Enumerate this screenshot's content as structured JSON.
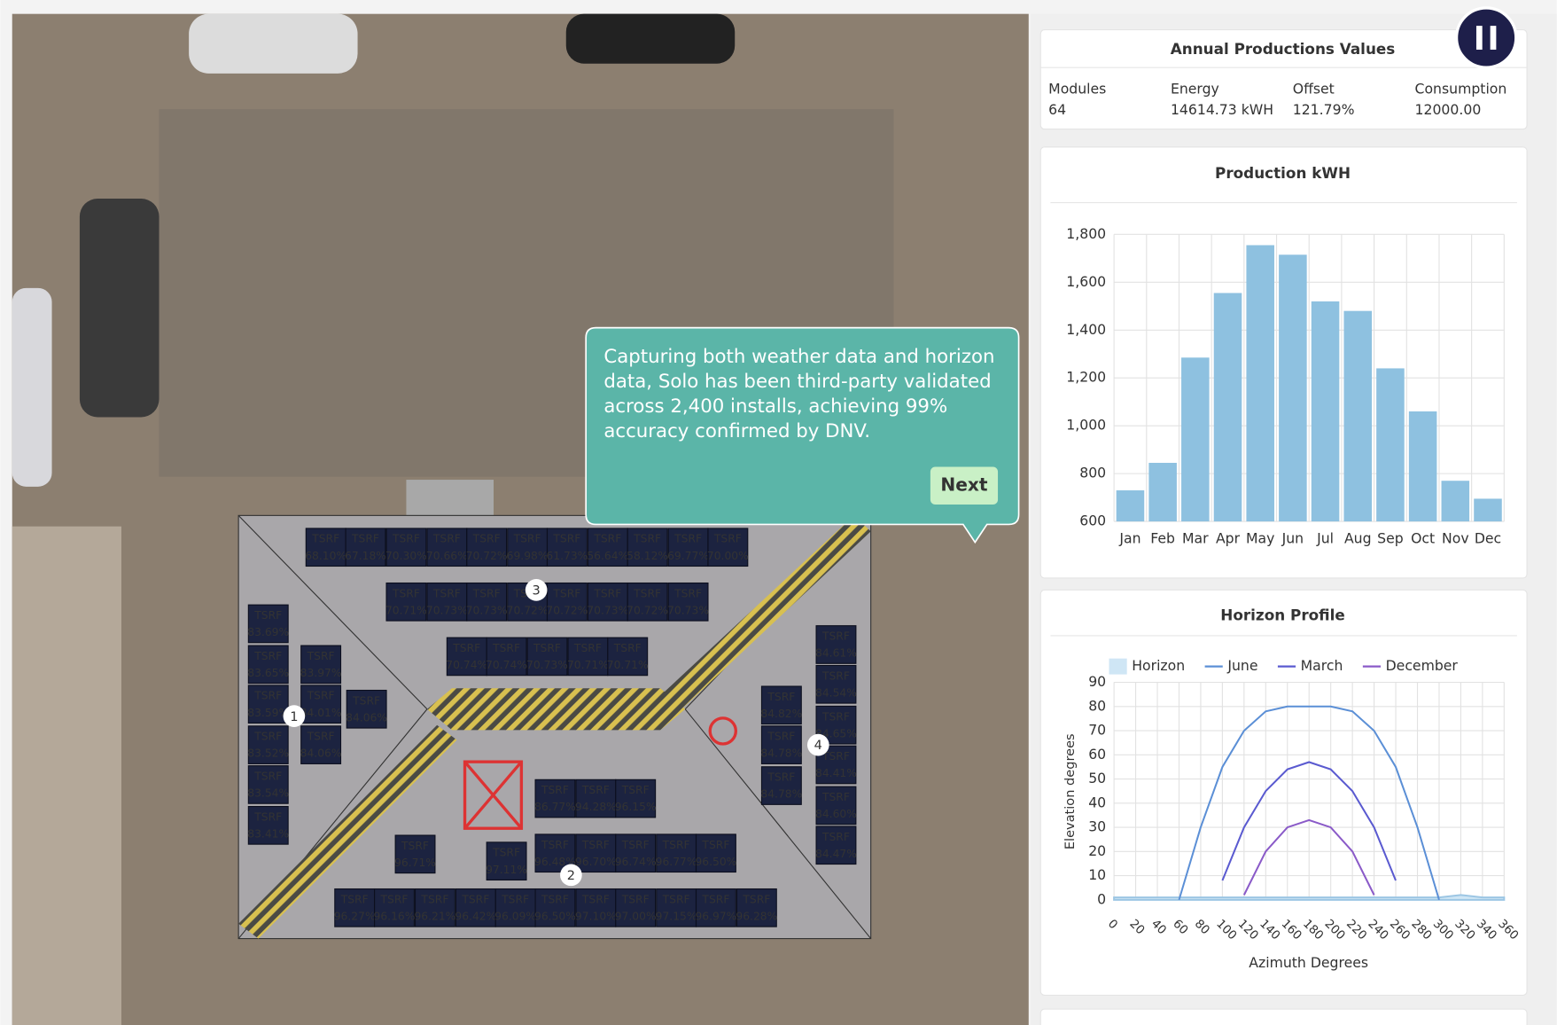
{
  "summary": {
    "title": "Annual Productions Values",
    "fields": [
      {
        "label": "Modules",
        "value": "64"
      },
      {
        "label": "Energy",
        "value": "14614.73 kWH"
      },
      {
        "label": "Offset",
        "value": "121.79%"
      },
      {
        "label": "Consumption",
        "value": "12000.00"
      }
    ]
  },
  "tooltip": {
    "text": "Capturing both weather data and horizon data, Solo has been third-party validated across 2,400 installs, achieving 99% accuracy confirmed by DNV.",
    "button": "Next"
  },
  "roof": {
    "markers": [
      "3",
      "1",
      "4",
      "2"
    ],
    "panels": [
      {
        "label": "TSRF",
        "value": "68.10%"
      },
      {
        "label": "TSRF",
        "value": "67.18%"
      },
      {
        "label": "TSRF",
        "value": "70.30%"
      },
      {
        "label": "TSRF",
        "value": "70.66%"
      },
      {
        "label": "TSRF",
        "value": "70.72%"
      },
      {
        "label": "TSRF",
        "value": "69.98%"
      },
      {
        "label": "TSRF",
        "value": "61.73%"
      },
      {
        "label": "TSRF",
        "value": "56.64%"
      },
      {
        "label": "TSRF",
        "value": "58.12%"
      },
      {
        "label": "TSRF",
        "value": "69.77%"
      },
      {
        "label": "TSRF",
        "value": "70.00%"
      },
      {
        "label": "TSRF",
        "value": "70.71%"
      },
      {
        "label": "TSRF",
        "value": "70.73%"
      },
      {
        "label": "TSRF",
        "value": "70.73%"
      },
      {
        "label": "TSRF",
        "value": "70.72%"
      },
      {
        "label": "TSRF",
        "value": "70.72%"
      },
      {
        "label": "TSRF",
        "value": "70.73%"
      },
      {
        "label": "TSRF",
        "value": "70.72%"
      },
      {
        "label": "TSRF",
        "value": "70.73%"
      },
      {
        "label": "TSRF",
        "value": "70.74%"
      },
      {
        "label": "TSRF",
        "value": "70.74%"
      },
      {
        "label": "TSRF",
        "value": "70.73%"
      },
      {
        "label": "TSRF",
        "value": "70.71%"
      },
      {
        "label": "TSRF",
        "value": "70.71%"
      },
      {
        "label": "TSRF",
        "value": "83.69%"
      },
      {
        "label": "TSRF",
        "value": "83.65%"
      },
      {
        "label": "TSRF",
        "value": "83.97%"
      },
      {
        "label": "TSRF",
        "value": "83.59%"
      },
      {
        "label": "TSRF",
        "value": "84.01%"
      },
      {
        "label": "TSRF",
        "value": "84.06%"
      },
      {
        "label": "TSRF",
        "value": "83.52%"
      },
      {
        "label": "TSRF",
        "value": "84.06%"
      },
      {
        "label": "TSRF",
        "value": "83.54%"
      },
      {
        "label": "TSRF",
        "value": "83.41%"
      },
      {
        "label": "TSRF",
        "value": "84.61%"
      },
      {
        "label": "TSRF",
        "value": "84.54%"
      },
      {
        "label": "TSRF",
        "value": "84.82%"
      },
      {
        "label": "TSRF",
        "value": "84.65%"
      },
      {
        "label": "TSRF",
        "value": "84.78%"
      },
      {
        "label": "TSRF",
        "value": "84.41%"
      },
      {
        "label": "TSRF",
        "value": "84.78%"
      },
      {
        "label": "TSRF",
        "value": "84.60%"
      },
      {
        "label": "TSRF",
        "value": "84.47%"
      },
      {
        "label": "TSRF",
        "value": "86.77%"
      },
      {
        "label": "TSRF",
        "value": "94.28%"
      },
      {
        "label": "TSRF",
        "value": "96.15%"
      },
      {
        "label": "TSRF",
        "value": "96.71%"
      },
      {
        "label": "TSRF",
        "value": "97.11%"
      },
      {
        "label": "TSRF",
        "value": "96.48%"
      },
      {
        "label": "TSRF",
        "value": "96.70%"
      },
      {
        "label": "TSRF",
        "value": "96.74%"
      },
      {
        "label": "TSRF",
        "value": "96.77%"
      },
      {
        "label": "TSRF",
        "value": "96.50%"
      },
      {
        "label": "TSRF",
        "value": "96.27%"
      },
      {
        "label": "TSRF",
        "value": "96.16%"
      },
      {
        "label": "TSRF",
        "value": "96.21%"
      },
      {
        "label": "TSRF",
        "value": "96.42%"
      },
      {
        "label": "TSRF",
        "value": "96.09%"
      },
      {
        "label": "TSRF",
        "value": "96.50%"
      },
      {
        "label": "TSRF",
        "value": "97.10%"
      },
      {
        "label": "TSRF",
        "value": "97.00%"
      },
      {
        "label": "TSRF",
        "value": "97.15%"
      },
      {
        "label": "TSRF",
        "value": "96.97%"
      },
      {
        "label": "TSRF",
        "value": "96.28%"
      }
    ]
  },
  "chart_data": [
    {
      "type": "bar",
      "title": "Production kWH",
      "categories": [
        "Jan",
        "Feb",
        "Mar",
        "Apr",
        "May",
        "Jun",
        "Jul",
        "Aug",
        "Sep",
        "Oct",
        "Nov",
        "Dec"
      ],
      "values": [
        730,
        845,
        1285,
        1555,
        1755,
        1715,
        1520,
        1480,
        1240,
        1060,
        770,
        695
      ],
      "color": "#8ec1e0",
      "ylim": [
        600,
        1800
      ],
      "yticks": [
        600,
        800,
        {
          "value": 1000,
          "label": "1,000"
        },
        {
          "value": 1200,
          "label": "1,200"
        },
        {
          "value": 1400,
          "label": "1,400"
        },
        {
          "value": 1600,
          "label": "1,600"
        },
        {
          "value": 1800,
          "label": "1,800"
        }
      ],
      "grid": true
    },
    {
      "type": "line",
      "title": "Horizon Profile",
      "x_label": "Azimuth Degrees",
      "y_label": "Elevation degrees",
      "x": [
        0,
        20,
        40,
        60,
        80,
        100,
        120,
        140,
        160,
        180,
        200,
        220,
        240,
        260,
        280,
        300,
        320,
        340,
        360
      ],
      "series": [
        {
          "name": "Horizon",
          "color": "#cfe6f5",
          "area": true,
          "values": [
            1,
            1,
            1,
            1,
            1,
            1,
            1,
            1,
            1,
            1,
            1,
            1,
            1,
            1,
            1,
            1,
            2,
            1,
            1
          ]
        },
        {
          "name": "June",
          "color": "#5b8fd6",
          "values": [
            null,
            null,
            null,
            0,
            30,
            55,
            70,
            78,
            80,
            80,
            80,
            78,
            70,
            55,
            30,
            0,
            null,
            null,
            null
          ]
        },
        {
          "name": "March",
          "color": "#5a5ad0",
          "values": [
            null,
            null,
            null,
            null,
            null,
            8,
            30,
            45,
            54,
            57,
            54,
            45,
            30,
            8,
            null,
            null,
            null,
            null,
            null
          ]
        },
        {
          "name": "December",
          "color": "#8a5ac8",
          "values": [
            null,
            null,
            null,
            null,
            null,
            null,
            2,
            20,
            30,
            33,
            30,
            20,
            2,
            null,
            null,
            null,
            null,
            null,
            null
          ]
        }
      ],
      "xlim": [
        0,
        360
      ],
      "xticks": [
        0,
        20,
        40,
        60,
        80,
        100,
        120,
        140,
        160,
        180,
        200,
        220,
        240,
        260,
        280,
        300,
        320,
        340,
        360
      ],
      "ylim": [
        0,
        90
      ],
      "yticks": [
        0,
        10,
        20,
        30,
        40,
        50,
        60,
        70,
        80,
        90
      ],
      "grid": true
    }
  ]
}
